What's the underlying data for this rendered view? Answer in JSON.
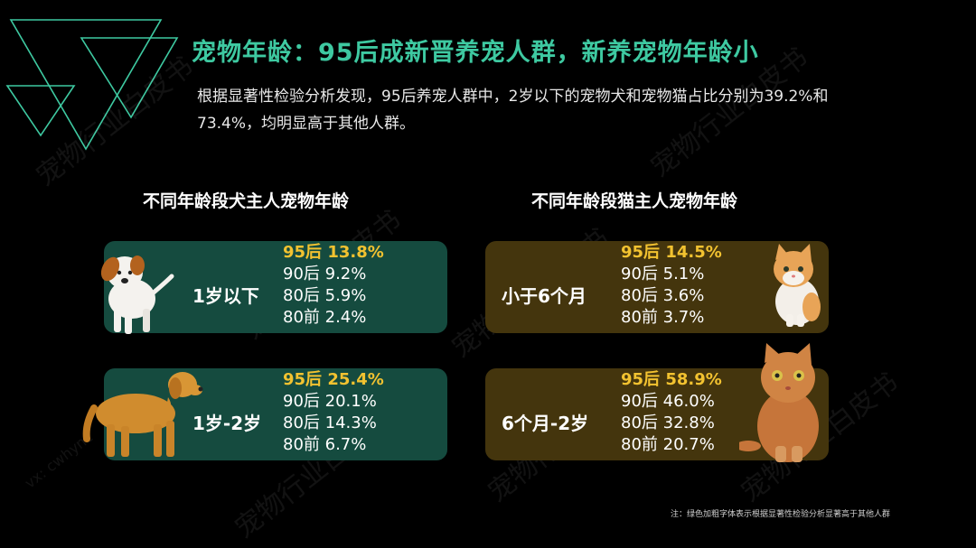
{
  "title": "宠物年龄：95后成新晋养宠人群，新养宠物年龄小",
  "description": "根据显著性检验分析发现，95后养宠人群中，2岁以下的宠物犬和宠物猫占比分别为39.2%和73.4%，均明显高于其他人群。",
  "dog_section": {
    "title": "不同年龄段犬主人宠物年龄",
    "cards": [
      {
        "label": "1岁以下",
        "stats": [
          {
            "text": "95后 13.8%",
            "highlight": true
          },
          {
            "text": "90后 9.2%",
            "highlight": false
          },
          {
            "text": "80后 5.9%",
            "highlight": false
          },
          {
            "text": "80前  2.4%",
            "highlight": false
          }
        ]
      },
      {
        "label": "1岁-2岁",
        "stats": [
          {
            "text": "95后 25.4%",
            "highlight": true
          },
          {
            "text": "90后 20.1%",
            "highlight": false
          },
          {
            "text": "80后 14.3%",
            "highlight": false
          },
          {
            "text": "80前  6.7%",
            "highlight": false
          }
        ]
      }
    ]
  },
  "cat_section": {
    "title": "不同年龄段猫主人宠物年龄",
    "cards": [
      {
        "label": "小于6个月",
        "stats": [
          {
            "text": "95后 14.5%",
            "highlight": true
          },
          {
            "text": "90后 5.1%",
            "highlight": false
          },
          {
            "text": "80后 3.6%",
            "highlight": false
          },
          {
            "text": "80前  3.7%",
            "highlight": false
          }
        ]
      },
      {
        "label": "6个月-2岁",
        "stats": [
          {
            "text": "95后 58.9%",
            "highlight": true
          },
          {
            "text": "90后 46.0%",
            "highlight": false
          },
          {
            "text": "80后 32.8%",
            "highlight": false
          },
          {
            "text": "80前  20.7%",
            "highlight": false
          }
        ]
      }
    ]
  },
  "note": "注：绿色加粗字体表示根据显著性检验分析显著高于其他人群",
  "watermark": "宠物行业白皮书",
  "watermark_sub": "vx: cwhync",
  "colors": {
    "accent_green": "#3ec9a1",
    "highlight_yellow": "#f2c230",
    "dog_card_bg": "#154b3f",
    "cat_card_bg": "#44350d",
    "background": "#000000"
  },
  "icons": [
    "triangle-decoration",
    "puppy-image",
    "golden-retriever-image",
    "kitten-image",
    "cat-image"
  ]
}
